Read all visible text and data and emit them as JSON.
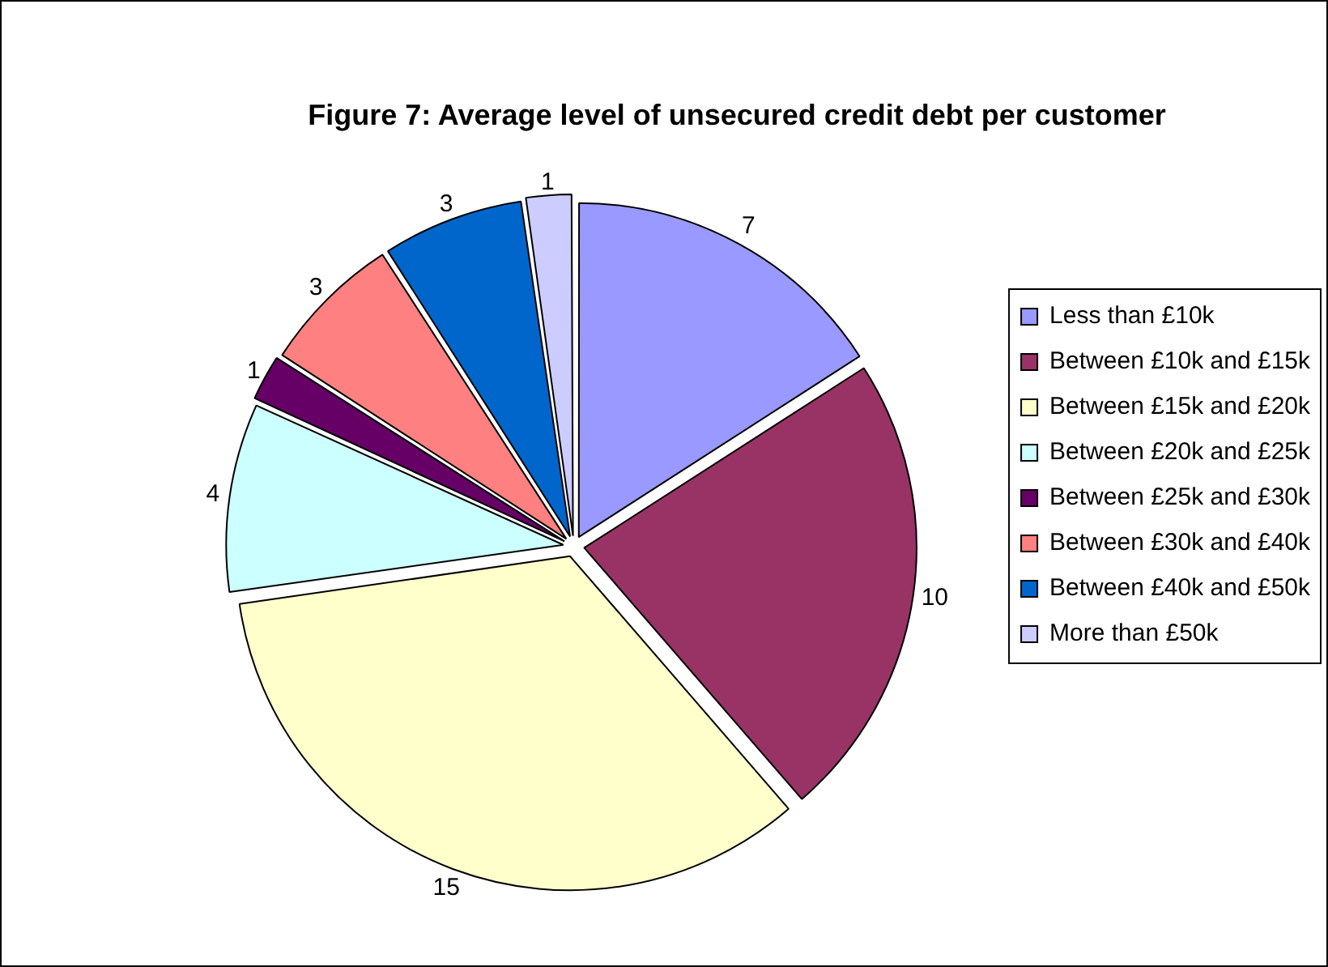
{
  "chart_data": {
    "type": "pie",
    "title": "Figure 7: Average level of unsecured credit debt per customer",
    "categories": [
      "Less than £10k",
      "Between £10k and £15k",
      "Between £15k and £20k",
      "Between £20k and £25k",
      "Between £25k and £30k",
      "Between £30k and £40k",
      "Between £40k and £50k",
      "More than £50k"
    ],
    "values": [
      7,
      10,
      15,
      4,
      1,
      3,
      3,
      1
    ],
    "colors": [
      "#9999ff",
      "#993366",
      "#ffffcc",
      "#ccffff",
      "#660066",
      "#ff8080",
      "#0066cc",
      "#ccccff"
    ],
    "data_labels": true,
    "legend": "right"
  }
}
